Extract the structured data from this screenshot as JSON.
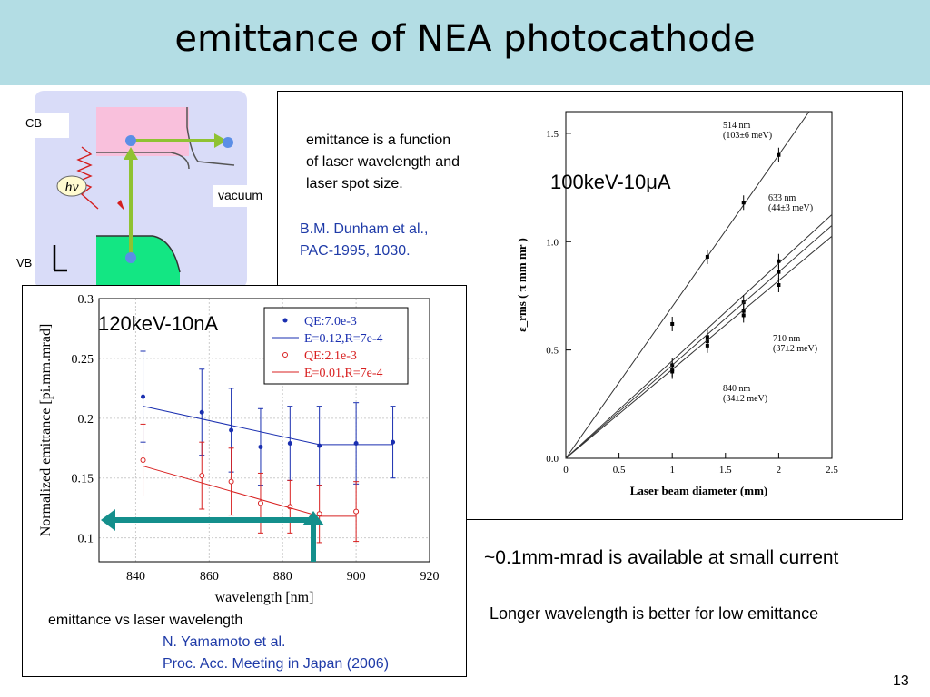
{
  "slide": {
    "title": "emittance of NEA photocathode",
    "page_number": "13",
    "conclusion_1": "~0.1mm-mrad is available at small current",
    "conclusion_2": "Longer wavelength is better for low emittance"
  },
  "band_diagram": {
    "cb_label": "CB",
    "vb_label": "VB",
    "vacuum_label": "vacuum",
    "photon_label": "hν"
  },
  "dunham": {
    "note_line1": "emittance is a function",
    "note_line2": "of laser wavelength and",
    "note_line3": "laser spot size.",
    "ref_line1": "B.M. Dunham et al.,",
    "ref_line2": "PAC-1995, 1030.",
    "condition": "100keV-10μA"
  },
  "yamamoto": {
    "condition": "120keV-10nA",
    "caption": "emittance vs laser wavelength",
    "ref_line1": "N. Yamamoto et al.",
    "ref_line2": "Proc. Acc. Meeting in Japan (2006)"
  },
  "chart_data": [
    {
      "type": "scatter",
      "title": "",
      "xlabel": "Laser beam diameter (mm)",
      "ylabel": "ε_rms ( π mm mr )",
      "xlim": [
        0,
        2.5
      ],
      "ylim": [
        0,
        1.6
      ],
      "xticks": [
        "0",
        "0.5",
        "1",
        "1.5",
        "2",
        "2.5"
      ],
      "yticks": [
        "0.0",
        "0.5",
        "1.0",
        "1.5"
      ],
      "series": [
        {
          "name": "514 nm (103±6 meV)",
          "x": [
            1.0,
            1.33,
            1.67,
            2.0
          ],
          "y": [
            0.62,
            0.93,
            1.18,
            1.4
          ],
          "fit_slope": 0.7
        },
        {
          "name": "633 nm (44±3 meV)",
          "x": [
            1.0,
            1.33,
            1.67,
            2.0
          ],
          "y": [
            0.43,
            0.56,
            0.72,
            0.91
          ],
          "fit_slope": 0.45
        },
        {
          "name": "710 nm (37±2 meV)",
          "x": [
            1.0,
            1.33,
            1.67,
            2.0
          ],
          "y": [
            0.41,
            0.54,
            0.68,
            0.86
          ],
          "fit_slope": 0.43
        },
        {
          "name": "840 nm (34±2 meV)",
          "x": [
            1.0,
            1.33,
            1.67,
            2.0
          ],
          "y": [
            0.4,
            0.52,
            0.66,
            0.8
          ],
          "fit_slope": 0.41
        }
      ],
      "annotations": [
        {
          "line1": "514 nm",
          "line2": "(103±6 meV)"
        },
        {
          "line1": "633 nm",
          "line2": "(44±3 meV)"
        },
        {
          "line1": "710 nm",
          "line2": "(37±2 meV)"
        },
        {
          "line1": "840 nm",
          "line2": "(34±2 meV)"
        }
      ]
    },
    {
      "type": "scatter",
      "title": "",
      "xlabel": "wavelength [nm]",
      "ylabel": "Normalized emittance [pi.mm.mrad]",
      "xlim": [
        830,
        920
      ],
      "ylim": [
        0.08,
        0.3
      ],
      "xticks": [
        "840",
        "860",
        "880",
        "900",
        "920"
      ],
      "yticks": [
        "0.1",
        "0.15",
        "0.2",
        "0.25",
        "0.3"
      ],
      "grid": true,
      "legend_position": "top-right",
      "series": [
        {
          "name": "QE:7.0e-3",
          "color": "#1a2fb0",
          "x": [
            842,
            858,
            866,
            874,
            882,
            890,
            900,
            910
          ],
          "y": [
            0.218,
            0.205,
            0.19,
            0.176,
            0.179,
            0.177,
            0.179,
            0.18
          ],
          "err": [
            0.038,
            0.036,
            0.035,
            0.032,
            0.031,
            0.033,
            0.034,
            0.03
          ]
        },
        {
          "name": "E=0.12,R=7e-4",
          "color": "#1a2fb0",
          "line": [
            [
              842,
              0.21
            ],
            [
              890,
              0.178
            ],
            [
              910,
              0.178
            ]
          ]
        },
        {
          "name": "QE:2.1e-3",
          "color": "#d82020",
          "x": [
            842,
            858,
            866,
            874,
            882,
            890,
            900
          ],
          "y": [
            0.165,
            0.152,
            0.147,
            0.129,
            0.126,
            0.12,
            0.122
          ],
          "err": [
            0.03,
            0.028,
            0.028,
            0.025,
            0.022,
            0.024,
            0.025
          ]
        },
        {
          "name": "E=0.01,R=7e-4",
          "color": "#d82020",
          "line": [
            [
              842,
              0.16
            ],
            [
              890,
              0.118
            ],
            [
              900,
              0.118
            ]
          ]
        }
      ]
    }
  ],
  "colors": {
    "title_bar": "#b3dde4",
    "band_bg": "#d9dcf8",
    "conduction_band": "#f9c0dc",
    "valence_band": "#13e683",
    "level_arrow": "#8fc232",
    "electron": "#5b8ee6",
    "photon": "#d41e1e",
    "teal_arrow": "#148f8c",
    "reference_blue": "#1f3ba8"
  }
}
